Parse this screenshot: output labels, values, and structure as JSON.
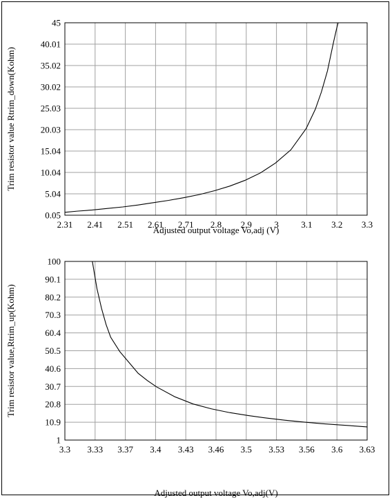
{
  "chart_data": [
    {
      "type": "line",
      "xlabel": "Adjusted output voltage Vo,adj (V)",
      "ylabel": "Trim resistor value Rtrim_down(Kohm)",
      "xlim": [
        2.31,
        3.3
      ],
      "ylim": [
        0.05,
        49.99
      ],
      "x_ticks": [
        "2.31",
        "2.41",
        "2.51",
        "2.61",
        "2.71",
        "2.8",
        "2.9",
        "3",
        "3.1",
        "3.2",
        "3.3"
      ],
      "y_ticks": [
        "0.05",
        "5.04",
        "10.04",
        "15.04",
        "20.03",
        "25.03",
        "30.02",
        "35.02",
        "40.01",
        "45"
      ],
      "grid": true,
      "series": [
        {
          "x": [
            2.31,
            2.35,
            2.4,
            2.45,
            2.5,
            2.55,
            2.6,
            2.65,
            2.7,
            2.75,
            2.8,
            2.85,
            2.9,
            2.95,
            3.0,
            3.05,
            3.1,
            3.13,
            3.15,
            3.17,
            3.19,
            3.2,
            3.205
          ],
          "y": [
            0.8,
            1.1,
            1.4,
            1.8,
            2.2,
            2.7,
            3.3,
            3.9,
            4.6,
            5.4,
            6.4,
            7.6,
            9.1,
            11.0,
            13.6,
            17.0,
            22.5,
            27.5,
            32.0,
            37.5,
            45.0,
            48.5,
            50.0
          ]
        }
      ]
    },
    {
      "type": "line",
      "xlabel": "Adjusted output voltage Vo,adj(V)",
      "ylabel": "Trim resistor value,Rtrim_up(Kohm)",
      "xlim": [
        3.3,
        3.63
      ],
      "ylim": [
        1,
        100
      ],
      "x_ticks": [
        "3.3",
        "3.33",
        "3.37",
        "3.4",
        "3.43",
        "3.46",
        "3.5",
        "3.53",
        "3.56",
        "3.6",
        "3.63"
      ],
      "y_ticks": [
        "1",
        "10.9",
        "20.8",
        "30.7",
        "40.6",
        "50.5",
        "60.4",
        "70.3",
        "80.2",
        "90.1",
        "100"
      ],
      "grid": true,
      "series": [
        {
          "x": [
            3.33,
            3.335,
            3.34,
            3.345,
            3.35,
            3.36,
            3.37,
            3.38,
            3.39,
            3.4,
            3.42,
            3.44,
            3.46,
            3.48,
            3.5,
            3.52,
            3.54,
            3.56,
            3.58,
            3.6,
            3.63
          ],
          "y": [
            100,
            85,
            74,
            65,
            58,
            50,
            44,
            38,
            34,
            30.5,
            25,
            21,
            18.3,
            16.2,
            14.6,
            13.2,
            12,
            11,
            10.1,
            9.4,
            8.3
          ]
        }
      ]
    }
  ]
}
